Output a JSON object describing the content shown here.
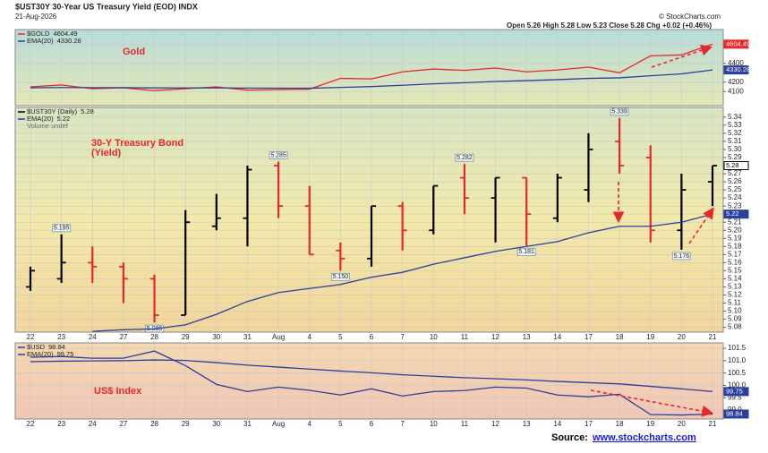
{
  "header": {
    "title": "$UST30Y 30-Year US Treasury Yield (EOD) INDX",
    "date": "21-Aug-2026",
    "quote": "Open 5.26 High 5.28 Low 5.23 Close 5.28 Chg +0.02 (+0.46%)",
    "copyright": "© StockCharts.com"
  },
  "source": {
    "label": "Source:",
    "link": "www.stockcharts.com"
  },
  "chart_data": [
    {
      "type": "line",
      "annotation": [
        "Gold"
      ],
      "ylim": [
        3950,
        4760
      ],
      "yticks": [
        4100,
        4200,
        4400,
        4600
      ],
      "grid": true,
      "series": [
        {
          "name": "$GOLD",
          "color": "#e8262b",
          "values": [
            4150,
            4170,
            4130,
            4140,
            4110,
            4130,
            4150,
            4115,
            4120,
            4125,
            4240,
            4235,
            4310,
            4340,
            4325,
            4350,
            4310,
            4330,
            4360,
            4300,
            4480,
            4490,
            4604.49
          ]
        },
        {
          "name": "EMA(20)",
          "color": "#2a3f9e",
          "values": [
            4140,
            4143,
            4142,
            4142,
            4139,
            4138,
            4139,
            4137,
            4136,
            4135,
            4144,
            4153,
            4167,
            4182,
            4194,
            4207,
            4216,
            4227,
            4240,
            4246,
            4268,
            4288,
            4330.28
          ]
        }
      ]
    },
    {
      "type": "ohlc",
      "annotation": [
        "30-Y Treasury Bond",
        "(Yield)"
      ],
      "legend_note": "Volume undef",
      "categories": [
        "22",
        "23",
        "24",
        "27",
        "28",
        "29",
        "30",
        "31",
        "Aug",
        "4",
        "5",
        "6",
        "7",
        "10",
        "11",
        "12",
        "13",
        "14",
        "17",
        "18",
        "19",
        "20",
        "21"
      ],
      "ylim": [
        5.074,
        5.352
      ],
      "grid": true,
      "yticks": [
        5.34,
        5.33,
        5.32,
        5.31,
        {
          "value": 5.3,
          "label": "5.30"
        },
        5.29,
        5.28,
        5.27,
        5.26,
        5.25,
        5.24,
        5.23,
        5.22,
        5.21,
        {
          "value": 5.2,
          "label": "5.20"
        },
        5.19,
        5.18,
        5.17,
        5.16,
        5.15,
        5.14,
        5.13,
        5.12,
        5.11,
        {
          "value": 5.1,
          "label": "5.10"
        },
        5.09,
        5.08
      ],
      "up_color": "#000000",
      "down_color": "#e8262b",
      "series": [
        {
          "name": "$UST30Y (Daily)",
          "color": "#000000",
          "open": [
            5.13,
            5.14,
            5.16,
            5.155,
            5.14,
            5.095,
            5.205,
            5.215,
            5.28,
            5.23,
            5.175,
            5.165,
            5.23,
            5.2,
            5.265,
            5.24,
            5.265,
            5.215,
            5.25,
            5.31,
            5.29,
            5.2,
            5.26
          ],
          "high": [
            5.155,
            5.195,
            5.18,
            5.16,
            5.145,
            5.225,
            5.245,
            5.28,
            5.285,
            5.255,
            5.185,
            5.23,
            5.235,
            5.255,
            5.282,
            5.265,
            5.265,
            5.27,
            5.32,
            5.339,
            5.305,
            5.27,
            5.28
          ],
          "low": [
            5.125,
            5.135,
            5.135,
            5.11,
            5.086,
            5.095,
            5.2,
            5.18,
            5.215,
            5.17,
            5.15,
            5.155,
            5.175,
            5.195,
            5.22,
            5.185,
            5.181,
            5.21,
            5.235,
            5.27,
            5.185,
            5.176,
            5.23
          ],
          "close": [
            5.15,
            5.16,
            5.155,
            5.14,
            5.095,
            5.21,
            5.215,
            5.275,
            5.23,
            5.17,
            5.165,
            5.23,
            5.2,
            5.255,
            5.24,
            5.265,
            5.22,
            5.265,
            5.3,
            5.28,
            5.2,
            5.25,
            5.28
          ],
          "high_labels": [
            null,
            "5.195",
            null,
            null,
            null,
            null,
            null,
            null,
            "5.285",
            null,
            null,
            null,
            null,
            null,
            "5.282",
            null,
            null,
            null,
            null,
            "5.339",
            null,
            null,
            null
          ],
          "low_labels": [
            null,
            null,
            null,
            null,
            "5.086",
            null,
            null,
            null,
            null,
            null,
            "5.150",
            null,
            null,
            null,
            null,
            null,
            "5.181",
            null,
            null,
            null,
            null,
            "5.176",
            null
          ]
        },
        {
          "name": "EMA(20)",
          "color": "#2a3f9e",
          "values": [
            null,
            null,
            5.075,
            5.077,
            5.078,
            5.083,
            5.096,
            5.112,
            5.123,
            5.128,
            5.133,
            5.142,
            5.148,
            5.158,
            5.166,
            5.174,
            5.18,
            5.186,
            5.197,
            5.205,
            5.205,
            5.21,
            5.22
          ]
        }
      ]
    },
    {
      "type": "line",
      "annotation": [
        "US$ Index"
      ],
      "categories": [
        "22",
        "23",
        "24",
        "27",
        "28",
        "29",
        "30",
        "31",
        "Aug",
        "4",
        "5",
        "6",
        "7",
        "10",
        "11",
        "12",
        "13",
        "14",
        "17",
        "18",
        "19",
        "20",
        "21"
      ],
      "ylim": [
        98.64,
        101.72
      ],
      "grid": true,
      "yticks": [
        101.5,
        {
          "value": 101,
          "label": "101.0"
        },
        100.5,
        {
          "value": 100,
          "label": "100.0"
        },
        99.5,
        {
          "value": 99,
          "label": "99.0"
        }
      ],
      "series": [
        {
          "name": "$USD",
          "color": "#2a3f9e",
          "values": [
            101.14,
            101.17,
            101.1,
            101.1,
            101.39,
            100.8,
            100.04,
            99.75,
            99.93,
            99.8,
            99.61,
            99.86,
            99.57,
            99.75,
            99.79,
            99.93,
            99.89,
            99.61,
            99.54,
            99.64,
            98.82,
            98.8,
            98.84
          ]
        },
        {
          "name": "EMA(20)",
          "color": "#2a3f9e",
          "values": [
            100.96,
            100.98,
            100.99,
            101.0,
            101.03,
            101.01,
            100.92,
            100.82,
            100.74,
            100.66,
            100.58,
            100.51,
            100.43,
            100.37,
            100.31,
            100.27,
            100.22,
            100.16,
            100.11,
            100.06,
            99.96,
            99.86,
            99.75
          ]
        }
      ]
    }
  ]
}
